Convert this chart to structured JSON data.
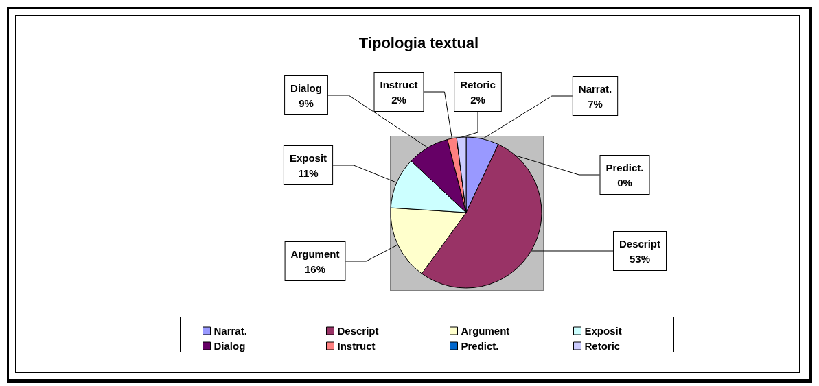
{
  "chart_data": {
    "type": "pie",
    "title": "Tipologia textual",
    "categories": [
      "Narrat.",
      "Descript",
      "Argument",
      "Exposit",
      "Dialog",
      "Instruct",
      "Predict.",
      "Retoric"
    ],
    "values": [
      7,
      53,
      16,
      11,
      9,
      2,
      0,
      2
    ],
    "value_labels": [
      "7%",
      "53%",
      "16%",
      "11%",
      "9%",
      "2%",
      "0%",
      "2%"
    ],
    "colors": [
      "#9999ff",
      "#993366",
      "#ffffcc",
      "#ccffff",
      "#660066",
      "#ff8080",
      "#0066cc",
      "#ccccff"
    ],
    "legend": "bottom"
  }
}
